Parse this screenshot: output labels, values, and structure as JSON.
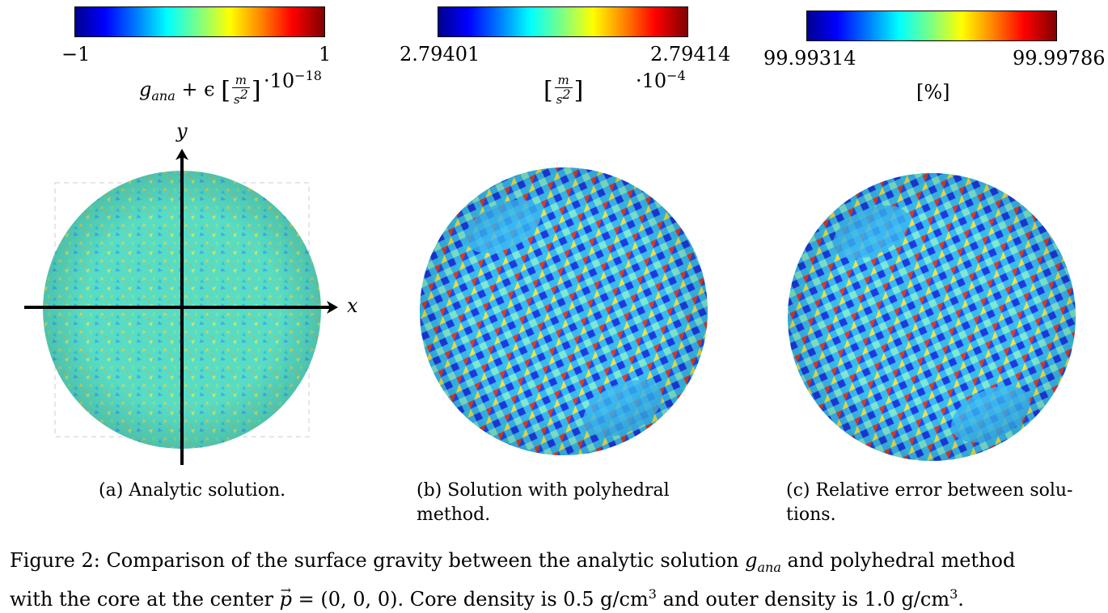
{
  "panels": [
    {
      "id": "a",
      "colorbar": {
        "min_label": "−1",
        "max_label": "1",
        "scale": "·10",
        "scale_exp": "−18"
      },
      "unit": {
        "symbol": "g",
        "subscript": "ana",
        "plus_eps": "+ ϵ",
        "frac_num": "m",
        "frac_den": "s",
        "frac_den_exp": "2"
      },
      "axes": {
        "x_label": "x",
        "y_label": "y"
      },
      "caption": "(a) Analytic solution."
    },
    {
      "id": "b",
      "colorbar": {
        "min_label": "2.79401",
        "max_label": "2.79414",
        "scale": "·10",
        "scale_exp": "−4"
      },
      "unit": {
        "frac_num": "m",
        "frac_den": "s",
        "frac_den_exp": "2"
      },
      "caption_line1": "(b)  Solution  with  polyhedral",
      "caption_line2": "method."
    },
    {
      "id": "c",
      "colorbar": {
        "min_label": "99.99314",
        "max_label": "99.99786"
      },
      "unit": {
        "text": "[%]"
      },
      "caption_line1": "(c) Relative error between solu-",
      "caption_line2": "tions."
    }
  ],
  "figure_caption": {
    "line1_a": "Figure 2: Comparison of the surface gravity between the analytic solution ",
    "line1_sym": "g",
    "line1_sub": "ana",
    "line1_b": " and polyhedral method",
    "line2_a": "with the core at the center ",
    "line2_vec": "p",
    "line2_b": " = (0, 0, 0). Core density is 0.5 g/cm",
    "line2_exp1": "3",
    "line2_c": " and outer density is 1.0 g/cm",
    "line2_exp2": "3",
    "line2_d": "."
  },
  "colormap": "jet",
  "colors": {
    "jet_blue": "#0000ff",
    "jet_cyan": "#00ffff",
    "jet_yellow": "#ffff00",
    "jet_red": "#ff0000"
  }
}
